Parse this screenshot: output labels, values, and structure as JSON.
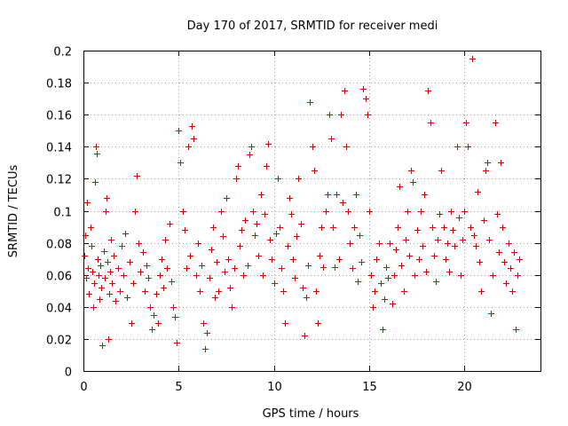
{
  "chart_data": {
    "type": "scatter",
    "title": "Day 170 of 2017, SRMTID for receiver medi",
    "xlabel": "GPS time / hours",
    "ylabel": "SRMTID / TECUs",
    "xlim": [
      0,
      24
    ],
    "ylim": [
      0,
      0.2
    ],
    "x_ticks": [
      0,
      5,
      10,
      15,
      20
    ],
    "x_tick_labels": [
      "0",
      "5",
      "10",
      "15",
      "20"
    ],
    "y_ticks": [
      0,
      0.02,
      0.04,
      0.06,
      0.08,
      0.1,
      0.12,
      0.14,
      0.16,
      0.18,
      0.2
    ],
    "y_tick_labels": [
      "0",
      "0.02",
      "0.04",
      "0.06",
      "0.08",
      "0.1",
      "0.12",
      "0.14",
      "0.16",
      "0.18",
      "0.2"
    ],
    "grid": true,
    "marker": "plus",
    "color": "#e00000",
    "series": [
      {
        "name": "SRMTID",
        "points": [
          [
            0.05,
            0.072
          ],
          [
            0.1,
            0.085
          ],
          [
            0.15,
            0.058
          ],
          [
            0.2,
            0.105
          ],
          [
            0.25,
            0.064
          ],
          [
            0.3,
            0.048
          ],
          [
            0.35,
            0.09
          ],
          [
            0.4,
            0.078
          ],
          [
            0.45,
            0.062
          ],
          [
            0.5,
            0.04
          ],
          [
            0.55,
            0.055
          ],
          [
            0.6,
            0.118
          ],
          [
            0.65,
            0.14
          ],
          [
            0.7,
            0.136
          ],
          [
            0.75,
            0.07
          ],
          [
            0.8,
            0.06
          ],
          [
            0.85,
            0.045
          ],
          [
            0.9,
            0.066
          ],
          [
            0.95,
            0.052
          ],
          [
            1.0,
            0.016
          ],
          [
            1.05,
            0.075
          ],
          [
            1.1,
            0.058
          ],
          [
            1.15,
            0.1
          ],
          [
            1.2,
            0.108
          ],
          [
            1.25,
            0.068
          ],
          [
            1.3,
            0.02
          ],
          [
            1.35,
            0.048
          ],
          [
            1.4,
            0.062
          ],
          [
            1.45,
            0.082
          ],
          [
            1.5,
            0.055
          ],
          [
            1.6,
            0.072
          ],
          [
            1.7,
            0.044
          ],
          [
            1.8,
            0.064
          ],
          [
            1.9,
            0.05
          ],
          [
            2.0,
            0.078
          ],
          [
            2.1,
            0.06
          ],
          [
            2.2,
            0.086
          ],
          [
            2.3,
            0.046
          ],
          [
            2.4,
            0.068
          ],
          [
            2.5,
            0.03
          ],
          [
            2.6,
            0.055
          ],
          [
            2.7,
            0.1
          ],
          [
            2.8,
            0.122
          ],
          [
            2.9,
            0.08
          ],
          [
            3.0,
            0.062
          ],
          [
            3.1,
            0.074
          ],
          [
            3.2,
            0.05
          ],
          [
            3.3,
            0.066
          ],
          [
            3.4,
            0.058
          ],
          [
            3.5,
            0.04
          ],
          [
            3.6,
            0.026
          ],
          [
            3.7,
            0.035
          ],
          [
            3.8,
            0.048
          ],
          [
            3.9,
            0.03
          ],
          [
            4.0,
            0.06
          ],
          [
            4.1,
            0.07
          ],
          [
            4.2,
            0.052
          ],
          [
            4.3,
            0.082
          ],
          [
            4.4,
            0.064
          ],
          [
            4.5,
            0.092
          ],
          [
            4.6,
            0.056
          ],
          [
            4.7,
            0.04
          ],
          [
            4.8,
            0.034
          ],
          [
            4.9,
            0.018
          ],
          [
            5.0,
            0.15
          ],
          [
            5.1,
            0.13
          ],
          [
            5.2,
            0.1
          ],
          [
            5.3,
            0.088
          ],
          [
            5.4,
            0.064
          ],
          [
            5.5,
            0.14
          ],
          [
            5.6,
            0.072
          ],
          [
            5.7,
            0.153
          ],
          [
            5.8,
            0.145
          ],
          [
            5.9,
            0.06
          ],
          [
            6.0,
            0.08
          ],
          [
            6.1,
            0.05
          ],
          [
            6.2,
            0.066
          ],
          [
            6.3,
            0.03
          ],
          [
            6.4,
            0.014
          ],
          [
            6.5,
            0.024
          ],
          [
            6.6,
            0.058
          ],
          [
            6.7,
            0.076
          ],
          [
            6.8,
            0.09
          ],
          [
            6.9,
            0.046
          ],
          [
            7.0,
            0.068
          ],
          [
            7.1,
            0.05
          ],
          [
            7.2,
            0.1
          ],
          [
            7.3,
            0.084
          ],
          [
            7.4,
            0.062
          ],
          [
            7.5,
            0.108
          ],
          [
            7.6,
            0.07
          ],
          [
            7.7,
            0.052
          ],
          [
            7.8,
            0.04
          ],
          [
            7.9,
            0.064
          ],
          [
            8.0,
            0.12
          ],
          [
            8.1,
            0.128
          ],
          [
            8.2,
            0.078
          ],
          [
            8.3,
            0.088
          ],
          [
            8.4,
            0.06
          ],
          [
            8.5,
            0.094
          ],
          [
            8.6,
            0.066
          ],
          [
            8.7,
            0.135
          ],
          [
            8.8,
            0.14
          ],
          [
            8.9,
            0.1
          ],
          [
            9.0,
            0.085
          ],
          [
            9.1,
            0.092
          ],
          [
            9.2,
            0.072
          ],
          [
            9.3,
            0.11
          ],
          [
            9.4,
            0.06
          ],
          [
            9.5,
            0.098
          ],
          [
            9.6,
            0.128
          ],
          [
            9.7,
            0.142
          ],
          [
            9.8,
            0.082
          ],
          [
            9.9,
            0.07
          ],
          [
            10.0,
            0.055
          ],
          [
            10.1,
            0.086
          ],
          [
            10.2,
            0.12
          ],
          [
            10.3,
            0.09
          ],
          [
            10.4,
            0.064
          ],
          [
            10.5,
            0.05
          ],
          [
            10.6,
            0.03
          ],
          [
            10.7,
            0.078
          ],
          [
            10.8,
            0.108
          ],
          [
            10.9,
            0.098
          ],
          [
            11.0,
            0.07
          ],
          [
            11.1,
            0.058
          ],
          [
            11.2,
            0.084
          ],
          [
            11.3,
            0.12
          ],
          [
            11.4,
            0.092
          ],
          [
            11.5,
            0.052
          ],
          [
            11.6,
            0.022
          ],
          [
            11.7,
            0.046
          ],
          [
            11.8,
            0.066
          ],
          [
            11.9,
            0.168
          ],
          [
            12.0,
            0.14
          ],
          [
            12.1,
            0.125
          ],
          [
            12.2,
            0.05
          ],
          [
            12.3,
            0.03
          ],
          [
            12.4,
            0.072
          ],
          [
            12.5,
            0.09
          ],
          [
            12.6,
            0.065
          ],
          [
            12.7,
            0.1
          ],
          [
            12.8,
            0.11
          ],
          [
            12.9,
            0.16
          ],
          [
            13.0,
            0.145
          ],
          [
            13.1,
            0.09
          ],
          [
            13.2,
            0.065
          ],
          [
            13.3,
            0.11
          ],
          [
            13.4,
            0.07
          ],
          [
            13.5,
            0.16
          ],
          [
            13.6,
            0.105
          ],
          [
            13.7,
            0.175
          ],
          [
            13.8,
            0.14
          ],
          [
            13.9,
            0.1
          ],
          [
            14.0,
            0.08
          ],
          [
            14.1,
            0.064
          ],
          [
            14.2,
            0.09
          ],
          [
            14.3,
            0.11
          ],
          [
            14.4,
            0.056
          ],
          [
            14.5,
            0.085
          ],
          [
            14.6,
            0.068
          ],
          [
            14.7,
            0.176
          ],
          [
            14.8,
            0.17
          ],
          [
            14.9,
            0.16
          ],
          [
            15.0,
            0.1
          ],
          [
            15.1,
            0.06
          ],
          [
            15.2,
            0.04
          ],
          [
            15.3,
            0.05
          ],
          [
            15.4,
            0.07
          ],
          [
            15.5,
            0.08
          ],
          [
            15.6,
            0.055
          ],
          [
            15.7,
            0.026
          ],
          [
            15.8,
            0.045
          ],
          [
            15.9,
            0.065
          ],
          [
            16.0,
            0.058
          ],
          [
            16.1,
            0.08
          ],
          [
            16.2,
            0.042
          ],
          [
            16.3,
            0.06
          ],
          [
            16.4,
            0.076
          ],
          [
            16.5,
            0.09
          ],
          [
            16.6,
            0.115
          ],
          [
            16.7,
            0.066
          ],
          [
            16.8,
            0.05
          ],
          [
            16.9,
            0.082
          ],
          [
            17.0,
            0.1
          ],
          [
            17.1,
            0.072
          ],
          [
            17.2,
            0.125
          ],
          [
            17.3,
            0.118
          ],
          [
            17.4,
            0.06
          ],
          [
            17.5,
            0.088
          ],
          [
            17.6,
            0.07
          ],
          [
            17.7,
            0.1
          ],
          [
            17.8,
            0.078
          ],
          [
            17.9,
            0.11
          ],
          [
            18.0,
            0.062
          ],
          [
            18.1,
            0.175
          ],
          [
            18.2,
            0.155
          ],
          [
            18.3,
            0.09
          ],
          [
            18.4,
            0.072
          ],
          [
            18.5,
            0.056
          ],
          [
            18.6,
            0.082
          ],
          [
            18.7,
            0.098
          ],
          [
            18.8,
            0.125
          ],
          [
            18.9,
            0.09
          ],
          [
            19.0,
            0.07
          ],
          [
            19.1,
            0.08
          ],
          [
            19.2,
            0.062
          ],
          [
            19.3,
            0.1
          ],
          [
            19.4,
            0.088
          ],
          [
            19.5,
            0.078
          ],
          [
            19.6,
            0.14
          ],
          [
            19.7,
            0.096
          ],
          [
            19.8,
            0.06
          ],
          [
            19.9,
            0.082
          ],
          [
            20.0,
            0.1
          ],
          [
            20.1,
            0.155
          ],
          [
            20.2,
            0.14
          ],
          [
            20.3,
            0.09
          ],
          [
            20.4,
            0.195
          ],
          [
            20.5,
            0.085
          ],
          [
            20.6,
            0.078
          ],
          [
            20.7,
            0.112
          ],
          [
            20.8,
            0.068
          ],
          [
            20.9,
            0.05
          ],
          [
            21.0,
            0.094
          ],
          [
            21.1,
            0.125
          ],
          [
            21.2,
            0.13
          ],
          [
            21.3,
            0.082
          ],
          [
            21.4,
            0.036
          ],
          [
            21.5,
            0.06
          ],
          [
            21.6,
            0.155
          ],
          [
            21.7,
            0.098
          ],
          [
            21.8,
            0.074
          ],
          [
            21.9,
            0.13
          ],
          [
            22.0,
            0.09
          ],
          [
            22.1,
            0.068
          ],
          [
            22.2,
            0.055
          ],
          [
            22.3,
            0.08
          ],
          [
            22.4,
            0.064
          ],
          [
            22.5,
            0.05
          ],
          [
            22.6,
            0.074
          ],
          [
            22.7,
            0.026
          ],
          [
            22.8,
            0.06
          ],
          [
            22.9,
            0.07
          ]
        ]
      }
    ]
  }
}
